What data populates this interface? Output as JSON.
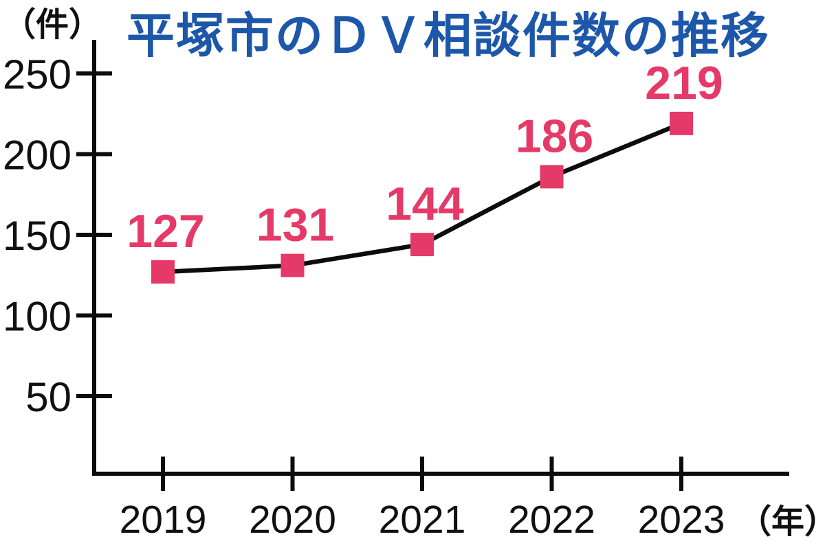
{
  "page": {
    "background": "#ffffff"
  },
  "chart_data": {
    "type": "line",
    "title": "平塚市のＤＶ相談件数の推移",
    "categories": [
      "2019",
      "2020",
      "2021",
      "2022",
      "2023"
    ],
    "values": [
      127,
      131,
      144,
      186,
      219
    ],
    "data_labels": [
      "127",
      "131",
      "144",
      "186",
      "219"
    ],
    "xlabel": "（年）",
    "ylabel": "（件）",
    "ylim": [
      0,
      250
    ],
    "y_ticks": [
      50,
      100,
      150,
      200,
      250
    ],
    "y_tick_labels": [
      "50",
      "100",
      "150",
      "200",
      "250"
    ],
    "grid": false,
    "legend_position": "none",
    "marker_shape": "square",
    "colors": {
      "title": "#1d57a9",
      "axis": "#0c0c0c",
      "tick_label": "#101010",
      "line": "#0c0c0c",
      "marker": "#e53a67",
      "data_label": "#e53a67"
    }
  }
}
